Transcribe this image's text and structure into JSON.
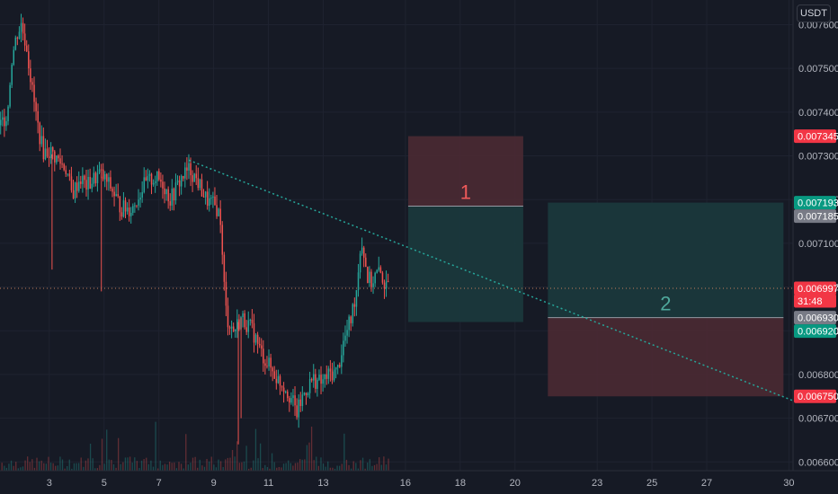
{
  "currency": "USDT",
  "colors": {
    "background": "#161a25",
    "grid": "#1f2330",
    "up": "#26a69a",
    "down": "#ef5350",
    "trendline": "#26a69a",
    "stop_zone": "#4a2a33",
    "target_zone": "#1b3a3d",
    "current_price_line": "#c27e5e"
  },
  "price_labels": [
    {
      "value": "0.007345",
      "kind": "red"
    },
    {
      "value": "0.007193",
      "kind": "green"
    },
    {
      "value": "0.007185",
      "kind": "gray"
    },
    {
      "value": "0.006997",
      "kind": "red"
    },
    {
      "value": "31:48",
      "kind": "red"
    },
    {
      "value": "0.006930",
      "kind": "gray"
    },
    {
      "value": "0.006920",
      "kind": "green"
    },
    {
      "value": "0.006750",
      "kind": "red"
    }
  ],
  "position_labels": [
    "1",
    "2"
  ],
  "chart_data": {
    "type": "candlestick",
    "y_axis": {
      "range": [
        0.00658,
        0.00764
      ],
      "ticks": [
        "0.007600",
        "0.007500",
        "0.007400",
        "0.007300",
        "0.007200",
        "0.007100",
        "0.007000",
        "0.006900",
        "0.006800",
        "0.006700",
        "0.006600"
      ],
      "tick_values": [
        0.0076,
        0.0075,
        0.0074,
        0.0073,
        0.0072,
        0.0071,
        0.007,
        0.0069,
        0.0068,
        0.0067,
        0.0066
      ]
    },
    "x_axis": {
      "range": [
        1.2,
        30.15
      ],
      "ticks": [
        "3",
        "5",
        "7",
        "9",
        "11",
        "13",
        "16",
        "18",
        "20",
        "23",
        "25",
        "27",
        "30"
      ],
      "tick_values": [
        3,
        5,
        7,
        9,
        11,
        13,
        16,
        18,
        20,
        23,
        25,
        27,
        30
      ]
    },
    "current_price": 0.006997,
    "price_path": [
      [
        1.2,
        0.00737
      ],
      [
        1.45,
        0.0074
      ],
      [
        1.6,
        0.00752
      ],
      [
        1.8,
        0.00758
      ],
      [
        1.95,
        0.0076
      ],
      [
        2.15,
        0.00755
      ],
      [
        2.35,
        0.00745
      ],
      [
        2.55,
        0.00737
      ],
      [
        2.75,
        0.00731
      ],
      [
        3.0,
        0.00731
      ],
      [
        3.3,
        0.00729
      ],
      [
        3.6,
        0.00727
      ],
      [
        3.8,
        0.00721
      ],
      [
        4.1,
        0.00725
      ],
      [
        4.35,
        0.00723
      ],
      [
        4.8,
        0.00726
      ],
      [
        5.2,
        0.00723
      ],
      [
        5.6,
        0.00718
      ],
      [
        6.0,
        0.00718
      ],
      [
        6.4,
        0.00723
      ],
      [
        6.8,
        0.00725
      ],
      [
        7.1,
        0.00724
      ],
      [
        7.4,
        0.0072
      ],
      [
        7.8,
        0.00725
      ],
      [
        8.1,
        0.00727
      ],
      [
        8.4,
        0.00724
      ],
      [
        8.7,
        0.0072
      ],
      [
        9.1,
        0.00718
      ],
      [
        9.25,
        0.00715
      ],
      [
        9.3,
        0.00705
      ],
      [
        9.45,
        0.00693
      ],
      [
        9.7,
        0.0069
      ],
      [
        10.0,
        0.00693
      ],
      [
        10.4,
        0.0069
      ],
      [
        10.7,
        0.00685
      ],
      [
        11.0,
        0.00682
      ],
      [
        11.3,
        0.00679
      ],
      [
        11.6,
        0.00677
      ],
      [
        11.85,
        0.00674
      ],
      [
        12.0,
        0.00671
      ],
      [
        12.3,
        0.00676
      ],
      [
        12.6,
        0.00679
      ],
      [
        12.9,
        0.00678
      ],
      [
        13.2,
        0.0068
      ],
      [
        13.5,
        0.00681
      ],
      [
        13.7,
        0.00687
      ],
      [
        14.0,
        0.00693
      ],
      [
        14.2,
        0.007
      ],
      [
        14.35,
        0.00711
      ],
      [
        14.45,
        0.00708
      ],
      [
        14.6,
        0.00702
      ],
      [
        14.75,
        0.00701
      ],
      [
        14.9,
        0.00703
      ],
      [
        15.1,
        0.00703
      ],
      [
        15.3,
        0.00699
      ],
      [
        15.35,
        0.006997
      ]
    ],
    "spikes": [
      {
        "x": 3.1,
        "low": 0.00704
      },
      {
        "x": 4.9,
        "low": 0.00699
      },
      {
        "x": 10.0,
        "low": 0.0067
      },
      {
        "x": 9.9,
        "low": 0.00664
      }
    ],
    "trendline": {
      "from": [
        8.1,
        0.00729
      ],
      "to": [
        30.15,
        0.00674
      ]
    },
    "positions": [
      {
        "label": "1",
        "x_start": 16.1,
        "x_end": 20.3,
        "entry": 0.007185,
        "stop": 0.007345,
        "target": 0.00692
      },
      {
        "label": "2",
        "x_start": 21.2,
        "x_end": 29.8,
        "entry": 0.00693,
        "stop": 0.00675,
        "target": 0.007193
      }
    ],
    "legend_position": "none",
    "grid": true
  }
}
